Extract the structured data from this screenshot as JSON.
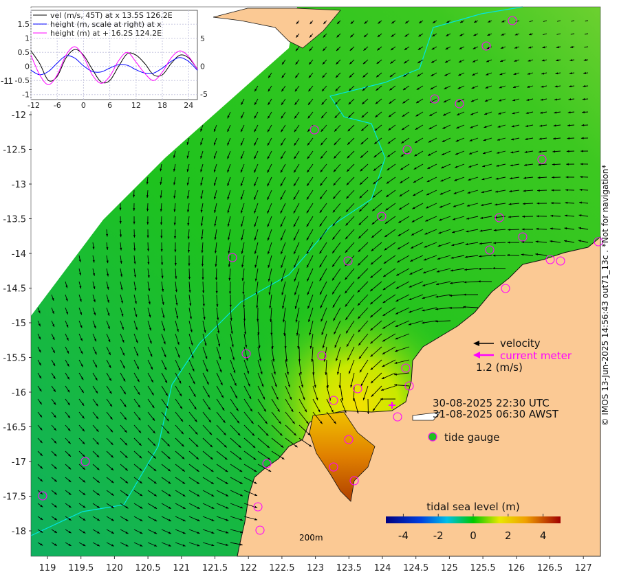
{
  "map": {
    "lat_ticks": [
      "-11",
      "-12",
      "-12.5",
      "-13",
      "-13.5",
      "-14",
      "-14.5",
      "-15",
      "-15.5",
      "-16",
      "-16.5",
      "-17",
      "-17.5",
      "-18"
    ],
    "lon_ticks": [
      "119",
      "119.5",
      "120",
      "120.5",
      "121",
      "121.5",
      "122",
      "122.5",
      "123",
      "123.5",
      "124",
      "124.5",
      "125",
      "125.5",
      "126",
      "126.5",
      "127"
    ],
    "scale_label": "200m",
    "colors": {
      "land": "#fbc994",
      "sea_deep": "#10b060",
      "sea": "#1ec21e",
      "sea_light": "#5ccf2a",
      "high": "#e8e000",
      "contour": "#00e5e5",
      "marker": "#ff00ff"
    }
  },
  "legend": {
    "velocity": "velocity",
    "current_meter": "current meter",
    "scale": "1.2 (m/s)",
    "time_utc": "30-08-2025 22:30 UTC",
    "time_awst": "31-08-2025 06:30 AWST",
    "tide_gauge": "tide gauge"
  },
  "colorbar": {
    "title": "tidal sea level (m)",
    "ticks": [
      "-4",
      "-2",
      "0",
      "2",
      "4"
    ],
    "range": [
      -5,
      5
    ]
  },
  "credit": "© IMOS 13-Jun-2025 14:56:43 out71_13c . *Not for navigation*",
  "chart_data": {
    "type": "line",
    "x": [
      -12,
      -10,
      -8,
      -6,
      -4,
      -2,
      0,
      2,
      4,
      6,
      8,
      10,
      12,
      14,
      16,
      18,
      20,
      22,
      24,
      26
    ],
    "xlim": [
      -12,
      26
    ],
    "x_ticks": [
      "-12",
      "-6",
      "0",
      "6",
      "12",
      "18",
      "24"
    ],
    "ylim": [
      -1.2,
      1.9
    ],
    "y_ticks": [
      "1.5",
      "1",
      "0.5",
      "0",
      "-0.5",
      "-1"
    ],
    "y2lim": [
      -6,
      9
    ],
    "y2_ticks": [
      "5",
      "0",
      "-5"
    ],
    "series": [
      {
        "name": "vel (m/s, 45T) at x 13.5S 126.2E",
        "color": "#000000",
        "axis": "left",
        "values": [
          0.55,
          0.1,
          -0.5,
          -0.35,
          0.3,
          0.6,
          0.4,
          -0.1,
          -0.55,
          -0.5,
          0.0,
          0.45,
          0.4,
          0.1,
          -0.3,
          -0.3,
          0.1,
          0.4,
          0.3,
          -0.1
        ]
      },
      {
        "name": "height (m, scale at right) at x",
        "color": "#0000ff",
        "axis": "right",
        "values": [
          -0.7,
          -1.5,
          -0.9,
          0.6,
          1.9,
          1.5,
          0.1,
          -0.9,
          -1.0,
          -0.3,
          0.3,
          0.2,
          -0.6,
          -1.2,
          -1.2,
          -0.3,
          0.9,
          1.6,
          0.9,
          -0.7
        ]
      },
      {
        "name": "height (m) at + 16.2S 124.2E",
        "color": "#ff00ff",
        "axis": "left",
        "values": [
          0.4,
          -0.3,
          -0.65,
          -0.3,
          0.4,
          0.7,
          0.35,
          -0.3,
          -0.6,
          -0.35,
          0.2,
          0.5,
          0.15,
          -0.25,
          -0.5,
          -0.2,
          0.3,
          0.55,
          0.35,
          -0.1
        ]
      }
    ]
  }
}
